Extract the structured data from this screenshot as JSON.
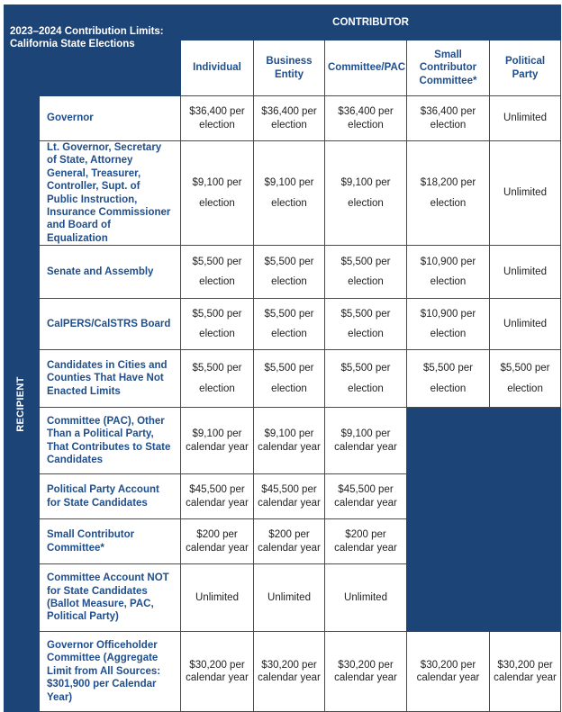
{
  "title": "2023–2024 Contribution Limits: California State Elections",
  "contributor_label": "CONTRIBUTOR",
  "recipient_label": "RECIPIENT",
  "columns": [
    "Individual",
    "Business Entity",
    "Committee/PAC",
    "Small Contributor Committee*",
    "Political Party"
  ],
  "rows": [
    {
      "recipient": "Governor",
      "cells": [
        [
          "$36,400 per",
          "election"
        ],
        [
          "$36,400 per",
          "election"
        ],
        [
          "$36,400 per",
          "election"
        ],
        [
          "$36,400 per",
          "election"
        ],
        [
          "Unlimited"
        ]
      ]
    },
    {
      "recipient": "Lt. Governor, Secretary of State, Attorney General, Treasurer, Controller, Supt. of Public Instruction, Insurance Commissioner and Board of Equalization",
      "cells": [
        [
          "$9,100 per",
          "election"
        ],
        [
          "$9,100 per",
          "election"
        ],
        [
          "$9,100 per",
          "election"
        ],
        [
          "$18,200 per",
          "election"
        ],
        [
          "Unlimited"
        ]
      ]
    },
    {
      "recipient": "Senate and Assembly",
      "cells": [
        [
          "$5,500 per",
          "election"
        ],
        [
          "$5,500 per",
          "election"
        ],
        [
          "$5,500 per",
          "election"
        ],
        [
          "$10,900 per",
          "election"
        ],
        [
          "Unlimited"
        ]
      ]
    },
    {
      "recipient": "CalPERS/CalSTRS Board",
      "cells": [
        [
          "$5,500 per",
          "election"
        ],
        [
          "$5,500 per",
          "election"
        ],
        [
          "$5,500 per",
          "election"
        ],
        [
          "$10,900 per",
          "election"
        ],
        [
          "Unlimited"
        ]
      ]
    },
    {
      "recipient": "Candidates in Cities and Counties That Have Not Enacted Limits",
      "cells": [
        [
          "$5,500 per",
          "election"
        ],
        [
          "$5,500 per",
          "election"
        ],
        [
          "$5,500 per",
          "election"
        ],
        [
          "$5,500 per",
          "election"
        ],
        [
          "$5,500 per",
          "election"
        ]
      ]
    },
    {
      "recipient": "Committee (PAC), Other Than a Political Party, That Contributes to State Candidates",
      "cells": [
        [
          "$9,100 per",
          "calendar year"
        ],
        [
          "$9,100 per",
          "calendar year"
        ],
        [
          "$9,100 per",
          "calendar year"
        ]
      ]
    },
    {
      "recipient": "Political Party Account for State Candidates",
      "cells": [
        [
          "$45,500 per",
          "calendar year"
        ],
        [
          "$45,500 per",
          "calendar year"
        ],
        [
          "$45,500 per",
          "calendar year"
        ]
      ]
    },
    {
      "recipient": "Small Contributor Committee*",
      "cells": [
        [
          "$200 per",
          "calendar year"
        ],
        [
          "$200 per",
          "calendar year"
        ],
        [
          "$200 per",
          "calendar year"
        ]
      ]
    },
    {
      "recipient": "Committee Account NOT for State Candidates (Ballot Measure, PAC, Political Party)",
      "cells": [
        [
          "Unlimited"
        ],
        [
          "Unlimited"
        ],
        [
          "Unlimited"
        ]
      ]
    },
    {
      "recipient": "Governor Officeholder Committee (Aggregate Limit from All Sources: $301,900 per Calendar Year)",
      "cells": [
        [
          "$30,200 per",
          "calendar year"
        ],
        [
          "$30,200 per",
          "calendar year"
        ],
        [
          "$30,200 per",
          "calendar year"
        ],
        [
          "$30,200 per",
          "calendar year"
        ],
        [
          "$30,200 per",
          "calendar year"
        ]
      ]
    }
  ],
  "colors": {
    "header_blue": "#1d4477",
    "recipient_text": "#1f4e8c"
  }
}
